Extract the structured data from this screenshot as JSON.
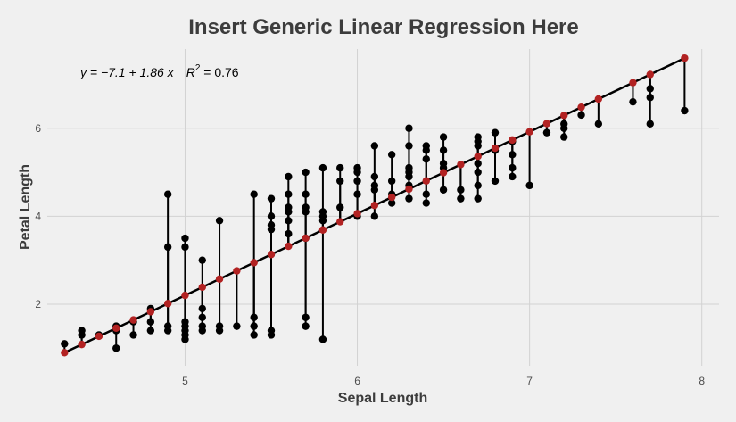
{
  "chart_data": {
    "type": "scatter",
    "title": "Insert Generic Linear Regression Here",
    "xlabel": "Sepal Length",
    "ylabel": "Petal Length",
    "xlim": [
      4.2,
      8.1
    ],
    "ylim": [
      0.6,
      7.8
    ],
    "x_ticks": [
      5,
      6,
      7,
      8
    ],
    "y_ticks": [
      2,
      4,
      6
    ],
    "x_tick_labels": [
      "5",
      "6",
      "7",
      "8"
    ],
    "y_tick_labels": [
      "2",
      "4",
      "6"
    ],
    "grid": true,
    "regression": {
      "intercept": -7.1,
      "slope": 1.86,
      "r_squared": 0.76
    },
    "annotation": {
      "equation": "y = −7.1 + 1.86 x",
      "r2_label": "R",
      "r2_exponent": "2",
      "r2_value": " = 0.76"
    },
    "colors": {
      "observed": "#000000",
      "fitted": "#b22222",
      "segment": "#000000",
      "line": "#000000"
    },
    "points": [
      [
        4.3,
        1.1
      ],
      [
        4.4,
        1.3
      ],
      [
        4.4,
        1.4
      ],
      [
        4.5,
        1.3
      ],
      [
        4.6,
        1.0
      ],
      [
        4.6,
        1.4
      ],
      [
        4.6,
        1.5
      ],
      [
        4.7,
        1.3
      ],
      [
        4.7,
        1.6
      ],
      [
        4.8,
        1.4
      ],
      [
        4.8,
        1.6
      ],
      [
        4.8,
        1.9
      ],
      [
        4.9,
        1.4
      ],
      [
        4.9,
        1.5
      ],
      [
        4.9,
        3.3
      ],
      [
        4.9,
        4.5
      ],
      [
        5.0,
        1.2
      ],
      [
        5.0,
        1.3
      ],
      [
        5.0,
        1.4
      ],
      [
        5.0,
        1.5
      ],
      [
        5.0,
        1.6
      ],
      [
        5.0,
        3.3
      ],
      [
        5.0,
        3.5
      ],
      [
        5.1,
        1.4
      ],
      [
        5.1,
        1.5
      ],
      [
        5.1,
        1.7
      ],
      [
        5.1,
        1.9
      ],
      [
        5.1,
        3.0
      ],
      [
        5.2,
        1.4
      ],
      [
        5.2,
        1.5
      ],
      [
        5.2,
        3.9
      ],
      [
        5.3,
        1.5
      ],
      [
        5.4,
        1.3
      ],
      [
        5.4,
        1.5
      ],
      [
        5.4,
        1.7
      ],
      [
        5.4,
        4.5
      ],
      [
        5.5,
        1.3
      ],
      [
        5.5,
        1.4
      ],
      [
        5.5,
        3.7
      ],
      [
        5.5,
        3.8
      ],
      [
        5.5,
        4.0
      ],
      [
        5.5,
        4.4
      ],
      [
        5.6,
        3.6
      ],
      [
        5.6,
        3.9
      ],
      [
        5.6,
        4.1
      ],
      [
        5.6,
        4.2
      ],
      [
        5.6,
        4.5
      ],
      [
        5.6,
        4.9
      ],
      [
        5.7,
        1.5
      ],
      [
        5.7,
        1.7
      ],
      [
        5.7,
        3.5
      ],
      [
        5.7,
        4.1
      ],
      [
        5.7,
        4.2
      ],
      [
        5.7,
        4.5
      ],
      [
        5.7,
        5.0
      ],
      [
        5.8,
        1.2
      ],
      [
        5.8,
        3.9
      ],
      [
        5.8,
        4.0
      ],
      [
        5.8,
        4.1
      ],
      [
        5.8,
        5.1
      ],
      [
        5.9,
        4.2
      ],
      [
        5.9,
        4.8
      ],
      [
        5.9,
        5.1
      ],
      [
        6.0,
        4.0
      ],
      [
        6.0,
        4.5
      ],
      [
        6.0,
        4.8
      ],
      [
        6.0,
        5.0
      ],
      [
        6.0,
        5.1
      ],
      [
        6.1,
        4.0
      ],
      [
        6.1,
        4.6
      ],
      [
        6.1,
        4.7
      ],
      [
        6.1,
        4.9
      ],
      [
        6.1,
        5.6
      ],
      [
        6.2,
        4.3
      ],
      [
        6.2,
        4.5
      ],
      [
        6.2,
        4.8
      ],
      [
        6.2,
        5.4
      ],
      [
        6.3,
        4.4
      ],
      [
        6.3,
        4.7
      ],
      [
        6.3,
        4.9
      ],
      [
        6.3,
        5.0
      ],
      [
        6.3,
        5.1
      ],
      [
        6.3,
        5.6
      ],
      [
        6.3,
        6.0
      ],
      [
        6.4,
        4.3
      ],
      [
        6.4,
        4.5
      ],
      [
        6.4,
        5.3
      ],
      [
        6.4,
        5.5
      ],
      [
        6.4,
        5.6
      ],
      [
        6.5,
        4.6
      ],
      [
        6.5,
        5.1
      ],
      [
        6.5,
        5.2
      ],
      [
        6.5,
        5.5
      ],
      [
        6.5,
        5.8
      ],
      [
        6.6,
        4.4
      ],
      [
        6.6,
        4.6
      ],
      [
        6.7,
        4.4
      ],
      [
        6.7,
        4.7
      ],
      [
        6.7,
        5.0
      ],
      [
        6.7,
        5.2
      ],
      [
        6.7,
        5.6
      ],
      [
        6.7,
        5.7
      ],
      [
        6.7,
        5.8
      ],
      [
        6.8,
        4.8
      ],
      [
        6.8,
        5.5
      ],
      [
        6.8,
        5.9
      ],
      [
        6.9,
        4.9
      ],
      [
        6.9,
        5.1
      ],
      [
        6.9,
        5.4
      ],
      [
        6.9,
        5.7
      ],
      [
        7.0,
        4.7
      ],
      [
        7.1,
        5.9
      ],
      [
        7.2,
        5.8
      ],
      [
        7.2,
        6.0
      ],
      [
        7.2,
        6.1
      ],
      [
        7.3,
        6.3
      ],
      [
        7.4,
        6.1
      ],
      [
        7.6,
        6.6
      ],
      [
        7.7,
        6.1
      ],
      [
        7.7,
        6.7
      ],
      [
        7.7,
        6.9
      ],
      [
        7.9,
        6.4
      ]
    ]
  }
}
